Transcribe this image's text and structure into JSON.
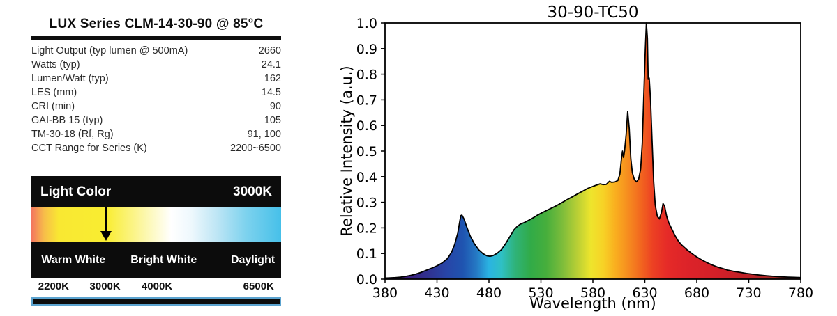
{
  "left_panel": {
    "title": "LUX Series CLM-14-30-90 @ 85°C",
    "specs": [
      {
        "label": "Light Output (typ lumen @ 500mA)",
        "value": "2660"
      },
      {
        "label": "Watts (typ)",
        "value": "24.1"
      },
      {
        "label": "Lumen/Watt (typ)",
        "value": "162"
      },
      {
        "label": "LES (mm)",
        "value": "14.5"
      },
      {
        "label": "CRI (min)",
        "value": "90"
      },
      {
        "label": "GAI-BB 15 (typ)",
        "value": "105"
      },
      {
        "label": "TM-30-18 (Rf, Rg)",
        "value": "91, 100"
      },
      {
        "label": "CCT Range for Series (K)",
        "value": "2200~6500"
      }
    ],
    "light_color": {
      "header": "Light Color",
      "selected_cct": "3000K",
      "arrow_position_pct": 30,
      "zone_labels": [
        "Warm White",
        "Bright White",
        "Daylight"
      ],
      "scale_labels": [
        {
          "label": "2200K",
          "pct": 8.9
        },
        {
          "label": "3000K",
          "pct": 29.5
        },
        {
          "label": "4000K",
          "pct": 50.3
        },
        {
          "label": "6500K",
          "pct": 91.0
        }
      ],
      "cct_gradient": [
        [
          0,
          "#f3745f"
        ],
        [
          5,
          "#f7bc4a"
        ],
        [
          11,
          "#f9e832"
        ],
        [
          30,
          "#f9ed31"
        ],
        [
          44,
          "#fcf6a0"
        ],
        [
          56,
          "#ffffff"
        ],
        [
          64,
          "#eef8fd"
        ],
        [
          74,
          "#bfe6f5"
        ],
        [
          86,
          "#7dd2ee"
        ],
        [
          100,
          "#46c0e9"
        ]
      ]
    }
  },
  "chart_data": {
    "type": "area",
    "title": "30-90-TC50",
    "xlabel": "Wavelength (nm)",
    "ylabel": "Relative Intensity (a.u.)",
    "xlim": [
      380,
      780
    ],
    "ylim": [
      0,
      1.0
    ],
    "x_ticks": [
      380,
      430,
      480,
      530,
      580,
      630,
      680,
      730,
      780
    ],
    "y_ticks": [
      0,
      0.1,
      0.2,
      0.3,
      0.4,
      0.5,
      0.6,
      0.7,
      0.8,
      0.9,
      1.0
    ],
    "grid": false,
    "legend": "none",
    "points": [
      [
        380,
        0.004
      ],
      [
        385,
        0.005
      ],
      [
        390,
        0.006
      ],
      [
        395,
        0.008
      ],
      [
        400,
        0.011
      ],
      [
        405,
        0.015
      ],
      [
        410,
        0.02
      ],
      [
        415,
        0.027
      ],
      [
        420,
        0.035
      ],
      [
        425,
        0.043
      ],
      [
        430,
        0.052
      ],
      [
        435,
        0.063
      ],
      [
        440,
        0.08
      ],
      [
        444,
        0.105
      ],
      [
        447,
        0.135
      ],
      [
        450,
        0.18
      ],
      [
        452,
        0.228
      ],
      [
        453,
        0.248
      ],
      [
        454,
        0.25
      ],
      [
        456,
        0.235
      ],
      [
        459,
        0.2
      ],
      [
        462,
        0.168
      ],
      [
        466,
        0.138
      ],
      [
        470,
        0.115
      ],
      [
        474,
        0.1
      ],
      [
        478,
        0.091
      ],
      [
        481,
        0.089
      ],
      [
        484,
        0.092
      ],
      [
        488,
        0.101
      ],
      [
        492,
        0.115
      ],
      [
        496,
        0.138
      ],
      [
        500,
        0.165
      ],
      [
        504,
        0.192
      ],
      [
        507,
        0.205
      ],
      [
        510,
        0.214
      ],
      [
        514,
        0.221
      ],
      [
        518,
        0.229
      ],
      [
        522,
        0.238
      ],
      [
        526,
        0.248
      ],
      [
        530,
        0.257
      ],
      [
        535,
        0.267
      ],
      [
        540,
        0.277
      ],
      [
        545,
        0.287
      ],
      [
        550,
        0.298
      ],
      [
        555,
        0.31
      ],
      [
        560,
        0.321
      ],
      [
        565,
        0.332
      ],
      [
        570,
        0.343
      ],
      [
        575,
        0.354
      ],
      [
        580,
        0.362
      ],
      [
        584,
        0.368
      ],
      [
        587,
        0.372
      ],
      [
        590,
        0.369
      ],
      [
        593,
        0.37
      ],
      [
        596,
        0.382
      ],
      [
        598,
        0.378
      ],
      [
        601,
        0.379
      ],
      [
        604,
        0.385
      ],
      [
        606,
        0.41
      ],
      [
        607.5,
        0.47
      ],
      [
        608.5,
        0.5
      ],
      [
        609.5,
        0.475
      ],
      [
        610.5,
        0.5
      ],
      [
        612,
        0.565
      ],
      [
        613.5,
        0.655
      ],
      [
        615,
        0.59
      ],
      [
        616.5,
        0.47
      ],
      [
        618,
        0.415
      ],
      [
        620,
        0.388
      ],
      [
        622,
        0.38
      ],
      [
        624,
        0.39
      ],
      [
        626,
        0.43
      ],
      [
        627.5,
        0.53
      ],
      [
        629,
        0.72
      ],
      [
        630.5,
        0.9
      ],
      [
        631.5,
        1.0
      ],
      [
        632.5,
        0.94
      ],
      [
        633.2,
        0.78
      ],
      [
        634.2,
        0.785
      ],
      [
        635.5,
        0.7
      ],
      [
        637,
        0.54
      ],
      [
        638.5,
        0.38
      ],
      [
        640,
        0.29
      ],
      [
        642,
        0.245
      ],
      [
        644,
        0.235
      ],
      [
        646,
        0.26
      ],
      [
        647.5,
        0.295
      ],
      [
        649,
        0.285
      ],
      [
        651,
        0.245
      ],
      [
        653,
        0.22
      ],
      [
        656,
        0.195
      ],
      [
        659,
        0.17
      ],
      [
        662,
        0.15
      ],
      [
        665,
        0.135
      ],
      [
        668,
        0.124
      ],
      [
        671,
        0.113
      ],
      [
        675,
        0.101
      ],
      [
        679,
        0.089
      ],
      [
        683,
        0.079
      ],
      [
        687,
        0.07
      ],
      [
        691,
        0.062
      ],
      [
        695,
        0.055
      ],
      [
        700,
        0.047
      ],
      [
        705,
        0.041
      ],
      [
        710,
        0.035
      ],
      [
        716,
        0.03
      ],
      [
        722,
        0.026
      ],
      [
        728,
        0.022
      ],
      [
        734,
        0.019
      ],
      [
        740,
        0.016
      ],
      [
        747,
        0.013
      ],
      [
        754,
        0.011
      ],
      [
        761,
        0.009
      ],
      [
        768,
        0.008
      ],
      [
        774,
        0.007
      ],
      [
        780,
        0.006
      ]
    ],
    "spectrum_gradient": [
      [
        380,
        "#2f0b59"
      ],
      [
        400,
        "#3a1a7a"
      ],
      [
        420,
        "#31308f"
      ],
      [
        440,
        "#2746a8"
      ],
      [
        455,
        "#1f54b0"
      ],
      [
        468,
        "#2579c4"
      ],
      [
        480,
        "#2ab3e2"
      ],
      [
        492,
        "#2fc0c4"
      ],
      [
        505,
        "#2fb37a"
      ],
      [
        520,
        "#31ab48"
      ],
      [
        535,
        "#46ae3c"
      ],
      [
        550,
        "#7abc3b"
      ],
      [
        565,
        "#b9cf35"
      ],
      [
        578,
        "#eee52c"
      ],
      [
        590,
        "#f7d226"
      ],
      [
        602,
        "#f9ae1f"
      ],
      [
        614,
        "#f68c1f"
      ],
      [
        626,
        "#f2671f"
      ],
      [
        638,
        "#ec4023"
      ],
      [
        652,
        "#e52a28"
      ],
      [
        670,
        "#dd2329"
      ],
      [
        700,
        "#d31f28"
      ],
      [
        730,
        "#bc2026"
      ],
      [
        760,
        "#9c2a24"
      ],
      [
        780,
        "#8a2f22"
      ]
    ]
  },
  "colors": {
    "panel_black": "#0c0c0c",
    "text_dark": "#2b2b2b",
    "bottom_bar_border": "#5ba3cf",
    "chart_line": "#000000",
    "background": "#ffffff"
  }
}
